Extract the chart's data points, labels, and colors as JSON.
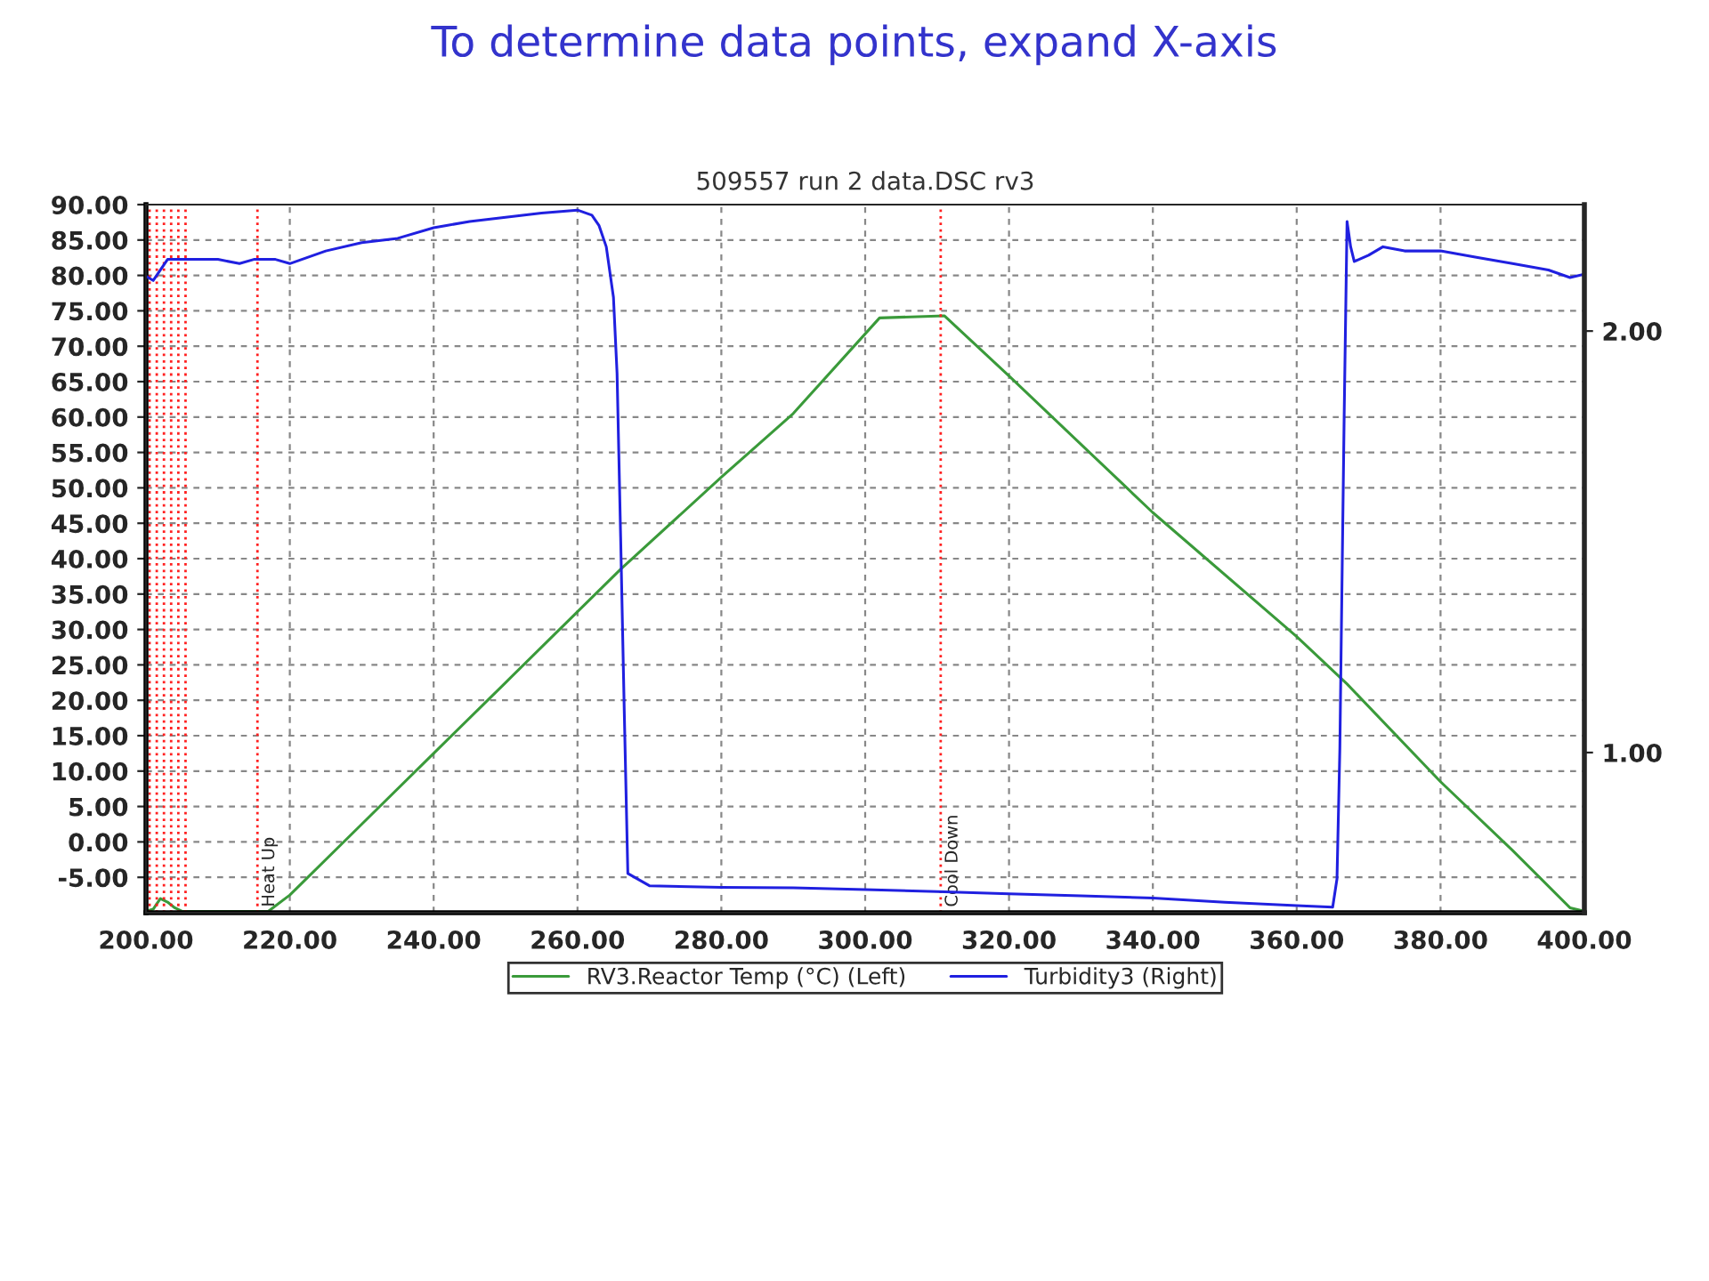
{
  "chart_data": {
    "type": "line",
    "title": "To determine data points, expand X-axis",
    "subtitle": "509557 run 2 data.DSC rv3",
    "xlim": [
      200,
      400
    ],
    "xticks": [
      {
        "value": 200,
        "label": "200.00"
      },
      {
        "value": 220,
        "label": "220.00"
      },
      {
        "value": 240,
        "label": "240.00"
      },
      {
        "value": 260,
        "label": "260.00"
      },
      {
        "value": 280,
        "label": "280.00"
      },
      {
        "value": 300,
        "label": "300.00"
      },
      {
        "value": 320,
        "label": "320.00"
      },
      {
        "value": 340,
        "label": "340.00"
      },
      {
        "value": 360,
        "label": "360.00"
      },
      {
        "value": 380,
        "label": "380.00"
      },
      {
        "value": 400,
        "label": "400.00"
      }
    ],
    "ylim": [
      -10,
      90
    ],
    "yticks": [
      {
        "value": -5,
        "label": "-5.00"
      },
      {
        "value": 0,
        "label": "0.00"
      },
      {
        "value": 5,
        "label": "5.00"
      },
      {
        "value": 10,
        "label": "10.00"
      },
      {
        "value": 15,
        "label": "15.00"
      },
      {
        "value": 20,
        "label": "20.00"
      },
      {
        "value": 25,
        "label": "25.00"
      },
      {
        "value": 30,
        "label": "30.00"
      },
      {
        "value": 35,
        "label": "35.00"
      },
      {
        "value": 40,
        "label": "40.00"
      },
      {
        "value": 45,
        "label": "45.00"
      },
      {
        "value": 50,
        "label": "50.00"
      },
      {
        "value": 55,
        "label": "55.00"
      },
      {
        "value": 60,
        "label": "60.00"
      },
      {
        "value": 65,
        "label": "65.00"
      },
      {
        "value": 70,
        "label": "70.00"
      },
      {
        "value": 75,
        "label": "75.00"
      },
      {
        "value": 80,
        "label": "80.00"
      },
      {
        "value": 85,
        "label": "85.00"
      },
      {
        "value": 90,
        "label": "90.00"
      }
    ],
    "y2lim": [
      0.62,
      2.3
    ],
    "y2ticks": [
      {
        "value": 1,
        "label": "1.00"
      },
      {
        "value": 2,
        "label": "2.00"
      }
    ],
    "grid": true,
    "legend": "bottom",
    "marker": "none",
    "line_style": "solid",
    "series": [
      {
        "name": "RV3.Reactor Temp (°C) (Left)",
        "color": "#3a9a3a",
        "x": [
          200,
          201,
          202,
          203,
          204,
          205,
          210,
          217,
          220,
          230,
          240,
          250,
          260,
          266,
          280,
          290,
          302,
          311,
          320,
          340,
          360,
          367,
          380,
          390,
          398,
          400
        ],
        "values": [
          -9.8,
          -9.5,
          -8.0,
          -8.5,
          -9.3,
          -9.8,
          -9.8,
          -9.8,
          -7.5,
          2.5,
          12.5,
          22.5,
          32.5,
          38.5,
          51.5,
          60.5,
          74.0,
          74.3,
          65.8,
          46.5,
          29.0,
          22.3,
          8.5,
          -1.2,
          -9.3,
          -9.8
        ]
      },
      {
        "name": "Turbidity3 (Right)",
        "color": "#2020e0",
        "axis": "y2",
        "x": [
          200,
          201,
          203,
          205,
          210,
          213,
          215,
          218,
          220,
          225,
          230,
          235,
          240,
          245,
          250,
          255,
          260,
          262,
          263,
          264,
          265,
          265.5,
          266,
          266.5,
          267,
          270,
          280,
          290,
          300,
          310,
          320,
          330,
          340,
          350,
          360,
          365,
          365.6,
          366,
          366.6,
          367,
          367.5,
          368,
          370,
          372,
          375,
          380,
          385,
          390,
          395,
          398,
          400
        ],
        "values": [
          2.13,
          2.12,
          2.17,
          2.17,
          2.17,
          2.16,
          2.17,
          2.17,
          2.16,
          2.19,
          2.21,
          2.22,
          2.245,
          2.26,
          2.27,
          2.28,
          2.287,
          2.275,
          2.25,
          2.2,
          2.08,
          1.9,
          1.51,
          1.1,
          0.713,
          0.684,
          0.68,
          0.679,
          0.675,
          0.67,
          0.665,
          0.66,
          0.655,
          0.645,
          0.637,
          0.633,
          0.7,
          1.01,
          1.8,
          2.26,
          2.2,
          2.165,
          2.18,
          2.2,
          2.19,
          2.19,
          2.175,
          2.16,
          2.145,
          2.127,
          2.135
        ]
      }
    ],
    "ref_lines": [
      {
        "axis": "x",
        "value": 200.5,
        "label": null,
        "color": "#ff2020",
        "line_style": "dotted"
      },
      {
        "axis": "x",
        "value": 201.5,
        "label": null,
        "color": "#ff2020",
        "line_style": "dotted"
      },
      {
        "axis": "x",
        "value": 202.5,
        "label": null,
        "color": "#ff2020",
        "line_style": "dotted"
      },
      {
        "axis": "x",
        "value": 203.5,
        "label": null,
        "color": "#ff2020",
        "line_style": "dotted"
      },
      {
        "axis": "x",
        "value": 204.5,
        "label": null,
        "color": "#ff2020",
        "line_style": "dotted"
      },
      {
        "axis": "x",
        "value": 205.5,
        "label": null,
        "color": "#ff2020",
        "line_style": "dotted"
      },
      {
        "axis": "x",
        "value": 215.5,
        "label": "Heat Up",
        "color": "#ff2020",
        "line_style": "dotted"
      },
      {
        "axis": "x",
        "value": 310.5,
        "label": "Cool Down",
        "color": "#ff2020",
        "line_style": "dotted"
      }
    ]
  }
}
